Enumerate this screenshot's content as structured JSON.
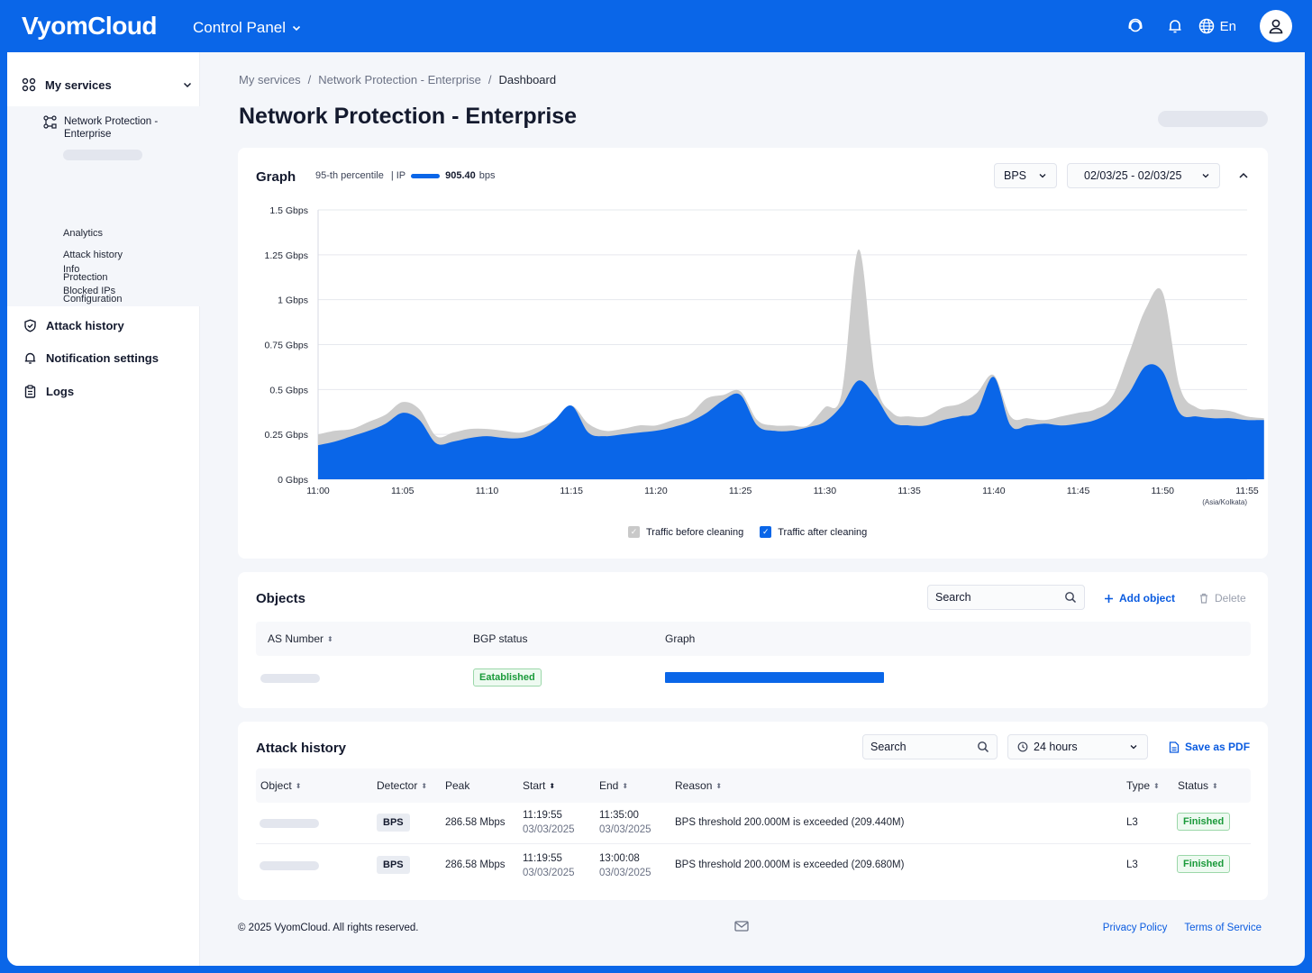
{
  "header": {
    "logo": "VyomCloud",
    "control_panel": "Control Panel",
    "language": "En",
    "icons": [
      "support-icon",
      "bell-icon",
      "globe-icon",
      "user-icon"
    ]
  },
  "sidebar": {
    "my_services": "My services",
    "service_name": "Network Protection - Enterprise",
    "sub_items": [
      "Analytics",
      "Attack history",
      "Protection",
      "Configuration",
      "Info",
      "Blocked IPs"
    ],
    "main_items": [
      "Attack history",
      "Notification settings",
      "Logs"
    ]
  },
  "breadcrumbs": [
    "My services",
    "Network Protection - Enterprise",
    "Dashboard"
  ],
  "breadcrumb_sep": "/",
  "page_title": "Network Protection - Enterprise",
  "graph": {
    "title": "Graph",
    "percentile_label": "95-th percentile",
    "ip_label": "|  IP",
    "percentile_value": "905.40",
    "percentile_unit": "bps",
    "unit_select": "BPS",
    "date_range": "02/03/25 - 02/03/25",
    "legend": [
      "Traffic before cleaning",
      "Traffic after cleaning"
    ],
    "timezone": "(Asia/Kolkata)"
  },
  "chart_data": {
    "type": "area",
    "x": [
      "11:00",
      "11:01",
      "11:02",
      "11:03",
      "11:04",
      "11:05",
      "11:06",
      "11:07",
      "11:08",
      "11:09",
      "11:10",
      "11:11",
      "11:12",
      "11:13",
      "11:14",
      "11:15",
      "11:16",
      "11:17",
      "11:18",
      "11:19",
      "11:20",
      "11:21",
      "11:22",
      "11:23",
      "11:24",
      "11:25",
      "11:26",
      "11:27",
      "11:28",
      "11:29",
      "11:30",
      "11:31",
      "11:32",
      "11:33",
      "11:34",
      "11:35",
      "11:36",
      "11:37",
      "11:38",
      "11:39",
      "11:40",
      "11:41",
      "11:42",
      "11:43",
      "11:44",
      "11:45",
      "11:46",
      "11:47",
      "11:48",
      "11:49",
      "11:50",
      "11:51",
      "11:52",
      "11:53",
      "11:54",
      "11:55",
      "11:56"
    ],
    "x_ticks": [
      "11:00",
      "11:05",
      "11:10",
      "11:15",
      "11:20",
      "11:25",
      "11:30",
      "11:35",
      "11:40",
      "11:45",
      "11:50",
      "11:55"
    ],
    "y_ticks": [
      "0 Gbps",
      "0.25 Gbps",
      "0.5 Gbps",
      "0.75 Gbps",
      "1 Gbps",
      "1.25 Gbps",
      "1.5 Gbps"
    ],
    "ylim": [
      0,
      1.5
    ],
    "series": [
      {
        "name": "Traffic before cleaning",
        "color": "#cccccc",
        "values": [
          0.25,
          0.27,
          0.28,
          0.32,
          0.36,
          0.43,
          0.39,
          0.24,
          0.26,
          0.28,
          0.28,
          0.27,
          0.26,
          0.29,
          0.33,
          0.41,
          0.31,
          0.27,
          0.28,
          0.3,
          0.3,
          0.33,
          0.36,
          0.45,
          0.47,
          0.49,
          0.33,
          0.3,
          0.3,
          0.3,
          0.4,
          0.48,
          1.28,
          0.55,
          0.37,
          0.35,
          0.35,
          0.4,
          0.42,
          0.48,
          0.58,
          0.35,
          0.34,
          0.33,
          0.35,
          0.37,
          0.39,
          0.46,
          0.7,
          0.95,
          1.04,
          0.52,
          0.4,
          0.39,
          0.38,
          0.35,
          0.34
        ]
      },
      {
        "name": "Traffic after cleaning",
        "color": "#0a66e8",
        "values": [
          0.19,
          0.21,
          0.24,
          0.27,
          0.31,
          0.37,
          0.33,
          0.2,
          0.21,
          0.23,
          0.24,
          0.23,
          0.23,
          0.26,
          0.33,
          0.41,
          0.26,
          0.24,
          0.25,
          0.26,
          0.27,
          0.29,
          0.32,
          0.37,
          0.44,
          0.47,
          0.3,
          0.27,
          0.27,
          0.29,
          0.32,
          0.41,
          0.55,
          0.46,
          0.32,
          0.3,
          0.3,
          0.33,
          0.35,
          0.38,
          0.57,
          0.3,
          0.3,
          0.31,
          0.3,
          0.31,
          0.33,
          0.38,
          0.48,
          0.63,
          0.6,
          0.37,
          0.35,
          0.34,
          0.34,
          0.33,
          0.33
        ]
      }
    ]
  },
  "objects": {
    "title": "Objects",
    "search_placeholder": "Search",
    "add_label": "Add object",
    "delete_label": "Delete",
    "columns": [
      "AS Number",
      "BGP status",
      "Graph"
    ],
    "row": {
      "bgp_status": "Eatablished"
    }
  },
  "attack_history": {
    "title": "Attack history",
    "search_placeholder": "Search",
    "period": "24 hours",
    "save_pdf": "Save as PDF",
    "columns": [
      "Object",
      "Detector",
      "Peak",
      "Start",
      "End",
      "Reason",
      "Type",
      "Status"
    ],
    "rows": [
      {
        "detector": "BPS",
        "peak": "286.58 Mbps",
        "start_time": "11:19:55",
        "start_date": "03/03/2025",
        "end_time": "11:35:00",
        "end_date": "03/03/2025",
        "reason": "BPS threshold 200.000M is exceeded (209.440M)",
        "type": "L3",
        "status": "Finished"
      },
      {
        "detector": "BPS",
        "peak": "286.58 Mbps",
        "start_time": "11:19:55",
        "start_date": "03/03/2025",
        "end_time": "13:00:08",
        "end_date": "03/03/2025",
        "reason": "BPS threshold 200.000M is exceeded (209.680M)",
        "type": "L3",
        "status": "Finished"
      }
    ]
  },
  "footer": {
    "copyright": "© 2025 VyomCloud. All rights reserved.",
    "privacy": "Privacy Policy",
    "terms": "Terms of Service"
  }
}
